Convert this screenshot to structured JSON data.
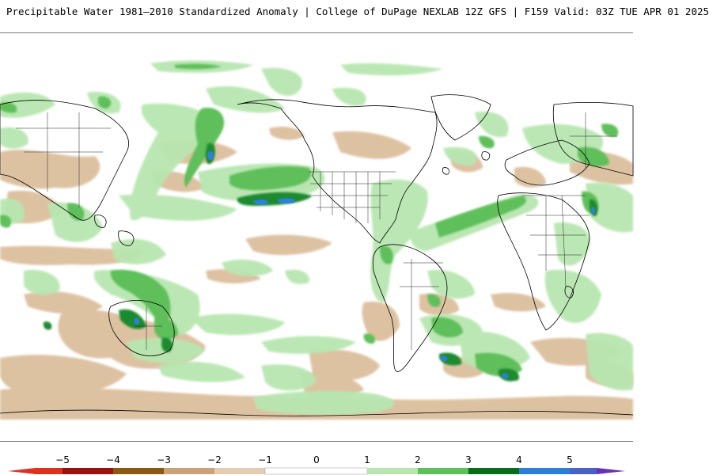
{
  "title": "Precipitable Water 1981–2010 Standardized Anomaly | College of DuPage NEXLAB  12Z GFS | F159 Valid: 03Z TUE APR 01 2025",
  "legend": {
    "ticks": [
      "−5",
      "−4",
      "−3",
      "−2",
      "−1",
      "0",
      "1",
      "2",
      "3",
      "4",
      "5"
    ],
    "colors": {
      "neg5": "#e0301e",
      "neg4": "#9b1010",
      "neg3": "#8a5a14",
      "neg2": "#caa27a",
      "neg1": "#e5cdb3",
      "zero": "#ffffff",
      "pos1": "#b8e6b0",
      "pos2": "#5fbf5a",
      "pos3": "#2a9a35",
      "pos4": "#0d6b1c",
      "pos5": "#2e7fd8",
      "max": "#6a2fb8"
    }
  },
  "map": {
    "projection": "cylindrical equidistant global",
    "coastline_color": "#000000",
    "border_color": "#222222"
  }
}
